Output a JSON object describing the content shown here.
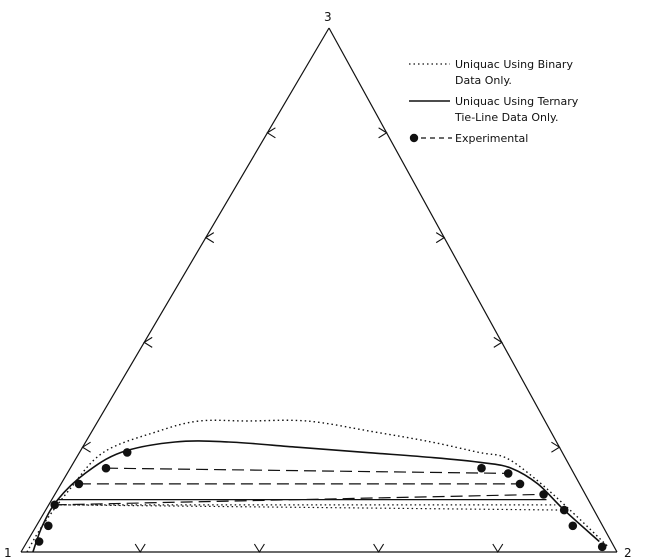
{
  "chart_data": {
    "type": "ternary",
    "title": "",
    "vertices": {
      "left": "1",
      "right": "2",
      "top": "3"
    },
    "tick_fractions": [
      0.2,
      0.4,
      0.6,
      0.8
    ],
    "legend": {
      "position": "top-right",
      "entries": [
        {
          "style": "dotted",
          "lines": [
            "Uniquac Using Binary",
            "Data Only."
          ]
        },
        {
          "style": "solid",
          "lines": [
            "Uniquac Using Ternary",
            "Tie-Line Data Only."
          ]
        },
        {
          "style": "marker-dashed",
          "lines": [
            "Experimental"
          ]
        }
      ]
    },
    "series": [
      {
        "name": "Uniquac Using Binary Data Only.",
        "style": "dotted",
        "points": [
          [
            0.99,
            0.01,
            0.0
          ],
          [
            0.94,
            0.01,
            0.05
          ],
          [
            0.86,
            0.02,
            0.12
          ],
          [
            0.77,
            0.04,
            0.19
          ],
          [
            0.66,
            0.11,
            0.23
          ],
          [
            0.58,
            0.17,
            0.25
          ],
          [
            0.5,
            0.25,
            0.25
          ],
          [
            0.4,
            0.35,
            0.25
          ],
          [
            0.3,
            0.47,
            0.23
          ],
          [
            0.21,
            0.58,
            0.21
          ],
          [
            0.14,
            0.67,
            0.19
          ],
          [
            0.1,
            0.72,
            0.18
          ],
          [
            0.07,
            0.79,
            0.14
          ],
          [
            0.04,
            0.88,
            0.08
          ],
          [
            0.01,
            0.98,
            0.01
          ]
        ]
      },
      {
        "name": "Uniquac Using Ternary Tie-Line Data Only.",
        "style": "solid",
        "points": [
          [
            0.98,
            0.02,
            0.0
          ],
          [
            0.94,
            0.01,
            0.05
          ],
          [
            0.89,
            0.01,
            0.1
          ],
          [
            0.82,
            0.03,
            0.15
          ],
          [
            0.74,
            0.07,
            0.19
          ],
          [
            0.64,
            0.15,
            0.21
          ],
          [
            0.55,
            0.24,
            0.21
          ],
          [
            0.44,
            0.36,
            0.2
          ],
          [
            0.33,
            0.48,
            0.19
          ],
          [
            0.22,
            0.6,
            0.18
          ],
          [
            0.14,
            0.69,
            0.17
          ],
          [
            0.1,
            0.74,
            0.16
          ],
          [
            0.07,
            0.8,
            0.13
          ],
          [
            0.05,
            0.87,
            0.08
          ],
          [
            0.02,
            0.96,
            0.02
          ]
        ]
      },
      {
        "name": "Experimental",
        "style": "marker-dashed",
        "points": [
          [
            0.96,
            0.02,
            0.02
          ],
          [
            0.93,
            0.02,
            0.05
          ],
          [
            0.9,
            0.01,
            0.09
          ],
          [
            0.84,
            0.03,
            0.13
          ],
          [
            0.78,
            0.06,
            0.16
          ],
          [
            0.73,
            0.08,
            0.19
          ],
          [
            0.15,
            0.69,
            0.16
          ],
          [
            0.11,
            0.74,
            0.15
          ],
          [
            0.1,
            0.77,
            0.13
          ],
          [
            0.07,
            0.82,
            0.11
          ],
          [
            0.05,
            0.87,
            0.08
          ],
          [
            0.05,
            0.9,
            0.05
          ],
          [
            0.02,
            0.97,
            0.01
          ]
        ]
      }
    ],
    "tie_lines": [
      {
        "style": "dashed",
        "ends": [
          [
            0.84,
            0.03,
            0.13
          ],
          [
            0.1,
            0.77,
            0.13
          ]
        ]
      },
      {
        "style": "dashed",
        "ends": [
          [
            0.78,
            0.06,
            0.16
          ],
          [
            0.11,
            0.74,
            0.15
          ]
        ]
      },
      {
        "style": "dashed",
        "ends": [
          [
            0.9,
            0.01,
            0.09
          ],
          [
            0.07,
            0.82,
            0.11
          ]
        ]
      },
      {
        "style": "dotted",
        "ends": [
          [
            0.9,
            0.01,
            0.09
          ],
          [
            0.06,
            0.85,
            0.09
          ]
        ]
      },
      {
        "style": "solid",
        "ends": [
          [
            0.89,
            0.01,
            0.1
          ],
          [
            0.07,
            0.83,
            0.1
          ]
        ]
      },
      {
        "style": "dotted",
        "ends": [
          [
            0.89,
            0.02,
            0.09
          ],
          [
            0.05,
            0.87,
            0.08
          ]
        ]
      }
    ]
  }
}
